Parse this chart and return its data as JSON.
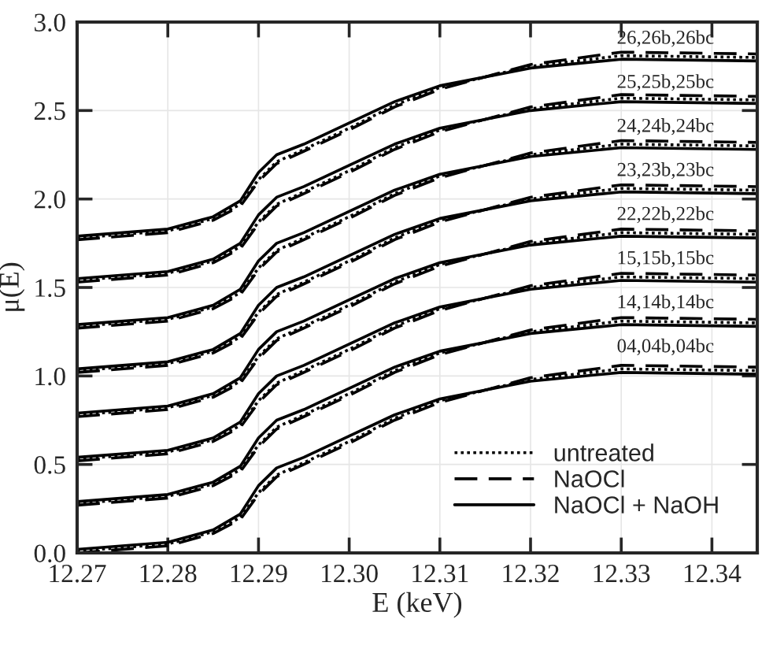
{
  "chart_data": {
    "type": "line",
    "xlabel": "E (keV)",
    "ylabel": "μ(E)",
    "x": [
      12.27,
      12.28,
      12.285,
      12.288,
      12.29,
      12.292,
      12.295,
      12.3,
      12.305,
      12.31,
      12.32,
      12.33,
      12.345
    ],
    "xlim": [
      12.27,
      12.345
    ],
    "xticks": [
      12.27,
      12.28,
      12.29,
      {
        "value": 12.3,
        "label": "12.30"
      },
      12.31,
      12.32,
      12.33,
      12.34
    ],
    "ylim": [
      0,
      3.0
    ],
    "yticks": [
      {
        "value": 0,
        "label": "0.0"
      },
      0.5,
      {
        "value": 1,
        "label": "1.0"
      },
      1.5,
      {
        "value": 2,
        "label": "2.0"
      },
      2.5,
      {
        "value": 3,
        "label": "3.0"
      }
    ],
    "grid": true,
    "legend": "bottom right",
    "marker": "none",
    "series": [
      {
        "name": "untreated",
        "color": "#000000",
        "line_style": "dotted",
        "values": [
          0.01,
          0.05,
          0.12,
          0.2,
          0.34,
          0.44,
          0.51,
          0.63,
          0.76,
          0.86,
          0.98,
          1.04,
          1.03
        ]
      },
      {
        "name": "NaOCl",
        "color": "#000000",
        "line_style": "dashed",
        "values": [
          0,
          0.04,
          0.11,
          0.19,
          0.33,
          0.43,
          0.5,
          0.62,
          0.75,
          0.85,
          0.99,
          1.06,
          1.05
        ]
      },
      {
        "name": "NaOCl + NaOH",
        "color": "#000000",
        "line_style": "solid",
        "values": [
          0.02,
          0.06,
          0.13,
          0.22,
          0.38,
          0.48,
          0.54,
          0.66,
          0.78,
          0.87,
          0.97,
          1.02,
          1.01
        ]
      },
      {
        "color": "#000000",
        "line_style": "dotted",
        "values": [
          0.28,
          0.32,
          0.39,
          0.47,
          0.61,
          0.71,
          0.78,
          0.9,
          1.03,
          1.13,
          1.25,
          1.31,
          1.3
        ]
      },
      {
        "color": "#000000",
        "line_style": "dashed",
        "values": [
          0.27,
          0.31,
          0.38,
          0.46,
          0.6,
          0.7,
          0.77,
          0.89,
          1.02,
          1.12,
          1.26,
          1.33,
          1.32
        ]
      },
      {
        "color": "#000000",
        "line_style": "solid",
        "values": [
          0.29,
          0.33,
          0.4,
          0.49,
          0.65,
          0.75,
          0.81,
          0.93,
          1.05,
          1.14,
          1.24,
          1.29,
          1.28
        ]
      },
      {
        "color": "#000000",
        "line_style": "dotted",
        "values": [
          0.53,
          0.57,
          0.64,
          0.72,
          0.86,
          0.96,
          1.03,
          1.15,
          1.28,
          1.38,
          1.5,
          1.56,
          1.55
        ]
      },
      {
        "color": "#000000",
        "line_style": "dashed",
        "values": [
          0.52,
          0.56,
          0.63,
          0.71,
          0.85,
          0.95,
          1.02,
          1.14,
          1.27,
          1.37,
          1.51,
          1.58,
          1.57
        ]
      },
      {
        "color": "#000000",
        "line_style": "solid",
        "values": [
          0.54,
          0.58,
          0.65,
          0.74,
          0.9,
          1.0,
          1.06,
          1.18,
          1.3,
          1.39,
          1.49,
          1.54,
          1.53
        ]
      },
      {
        "color": "#000000",
        "line_style": "dotted",
        "values": [
          0.78,
          0.82,
          0.89,
          0.97,
          1.11,
          1.21,
          1.28,
          1.4,
          1.53,
          1.63,
          1.75,
          1.81,
          1.8
        ]
      },
      {
        "color": "#000000",
        "line_style": "dashed",
        "values": [
          0.77,
          0.81,
          0.88,
          0.96,
          1.1,
          1.2,
          1.27,
          1.39,
          1.52,
          1.62,
          1.76,
          1.83,
          1.82
        ]
      },
      {
        "color": "#000000",
        "line_style": "solid",
        "values": [
          0.79,
          0.83,
          0.9,
          0.99,
          1.15,
          1.25,
          1.31,
          1.43,
          1.55,
          1.64,
          1.74,
          1.79,
          1.78
        ]
      },
      {
        "color": "#000000",
        "line_style": "dotted",
        "values": [
          1.03,
          1.07,
          1.14,
          1.22,
          1.36,
          1.46,
          1.53,
          1.65,
          1.78,
          1.88,
          2.0,
          2.06,
          2.05
        ]
      },
      {
        "color": "#000000",
        "line_style": "dashed",
        "values": [
          1.02,
          1.06,
          1.13,
          1.21,
          1.35,
          1.45,
          1.52,
          1.64,
          1.77,
          1.87,
          2.01,
          2.08,
          2.07
        ]
      },
      {
        "color": "#000000",
        "line_style": "solid",
        "values": [
          1.04,
          1.08,
          1.15,
          1.24,
          1.4,
          1.5,
          1.56,
          1.68,
          1.8,
          1.89,
          1.99,
          2.04,
          2.03
        ]
      },
      {
        "color": "#000000",
        "line_style": "dotted",
        "values": [
          1.28,
          1.32,
          1.39,
          1.47,
          1.61,
          1.71,
          1.78,
          1.9,
          2.03,
          2.13,
          2.25,
          2.31,
          2.3
        ]
      },
      {
        "color": "#000000",
        "line_style": "dashed",
        "values": [
          1.27,
          1.31,
          1.38,
          1.46,
          1.6,
          1.7,
          1.77,
          1.89,
          2.02,
          2.12,
          2.26,
          2.33,
          2.32
        ]
      },
      {
        "color": "#000000",
        "line_style": "solid",
        "values": [
          1.29,
          1.33,
          1.4,
          1.49,
          1.65,
          1.75,
          1.81,
          1.93,
          2.05,
          2.14,
          2.24,
          2.29,
          2.28
        ]
      },
      {
        "color": "#000000",
        "line_style": "dotted",
        "values": [
          1.54,
          1.58,
          1.65,
          1.73,
          1.87,
          1.97,
          2.04,
          2.16,
          2.29,
          2.39,
          2.51,
          2.57,
          2.56
        ]
      },
      {
        "color": "#000000",
        "line_style": "dashed",
        "values": [
          1.53,
          1.57,
          1.64,
          1.72,
          1.86,
          1.96,
          2.03,
          2.15,
          2.28,
          2.38,
          2.52,
          2.59,
          2.58
        ]
      },
      {
        "color": "#000000",
        "line_style": "solid",
        "values": [
          1.55,
          1.59,
          1.66,
          1.75,
          1.91,
          2.01,
          2.07,
          2.19,
          2.31,
          2.4,
          2.5,
          2.55,
          2.54
        ]
      },
      {
        "color": "#000000",
        "line_style": "dotted",
        "values": [
          1.78,
          1.82,
          1.89,
          1.97,
          2.11,
          2.21,
          2.28,
          2.4,
          2.53,
          2.63,
          2.75,
          2.81,
          2.8
        ]
      },
      {
        "color": "#000000",
        "line_style": "dashed",
        "values": [
          1.77,
          1.81,
          1.88,
          1.96,
          2.1,
          2.2,
          2.27,
          2.39,
          2.52,
          2.62,
          2.76,
          2.83,
          2.82
        ]
      },
      {
        "color": "#000000",
        "line_style": "solid",
        "values": [
          1.79,
          1.83,
          1.9,
          1.99,
          2.15,
          2.25,
          2.31,
          2.43,
          2.55,
          2.64,
          2.74,
          2.79,
          2.78
        ]
      }
    ],
    "annotations": [
      "26,26b,26bc",
      "25,25b,25bc",
      "24,24b,24bc",
      "23,23b,23bc",
      "22,22b,22bc",
      "15,15b,15bc",
      "14,14b,14bc",
      "04,04b,04bc"
    ]
  }
}
